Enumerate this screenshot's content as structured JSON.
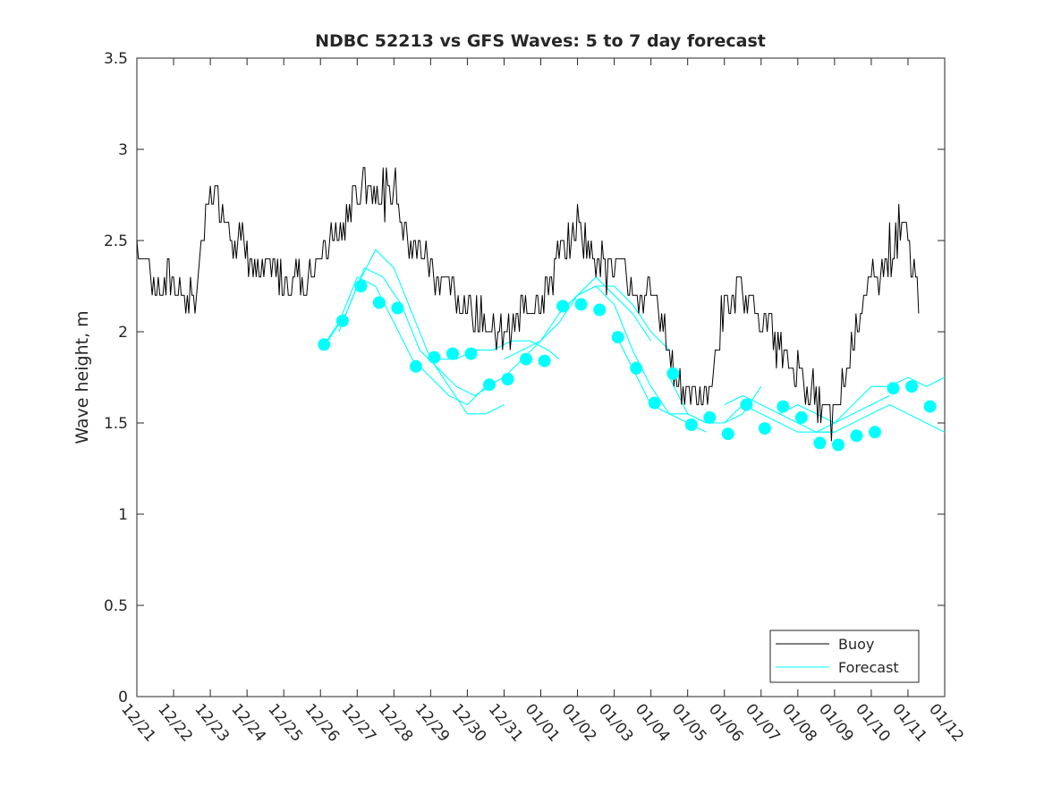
{
  "chart_data": {
    "type": "line",
    "title": "NDBC 52213 vs GFS Waves: 5 to 7 day forecast",
    "xlabel": "",
    "ylabel": "Wave height, m",
    "xlim": [
      0,
      22
    ],
    "ylim": [
      0,
      3.5
    ],
    "x_tick_labels": [
      "12/21",
      "12/22",
      "12/23",
      "12/24",
      "12/25",
      "12/26",
      "12/27",
      "12/28",
      "12/29",
      "12/30",
      "12/31",
      "01/01",
      "01/02",
      "01/03",
      "01/04",
      "01/05",
      "01/06",
      "01/07",
      "01/08",
      "01/09",
      "01/10",
      "01/11",
      "01/12"
    ],
    "y_ticks": [
      0,
      0.5,
      1,
      1.5,
      2,
      2.5,
      3,
      3.5
    ],
    "y_tick_labels": [
      "0",
      "0.5",
      "1",
      "1.5",
      "2",
      "2.5",
      "3",
      "3.5"
    ],
    "grid": false,
    "legend": {
      "position": "bottom-right",
      "entries": [
        "Buoy",
        "Forecast"
      ]
    },
    "colors": {
      "buoy": "#000000",
      "forecast": "#00ffff",
      "axis": "#262626"
    },
    "buoy": {
      "name": "Buoy",
      "days": [
        0,
        0.5,
        1,
        1.3,
        1.5,
        1.8,
        2,
        2.3,
        2.6,
        3,
        3.3,
        3.6,
        4,
        4.3,
        4.6,
        5,
        5.3,
        5.6,
        6,
        6.2,
        6.4,
        6.6,
        6.8,
        7,
        7.3,
        7.6,
        8,
        8.3,
        8.6,
        9,
        9.3,
        9.6,
        10,
        10.3,
        10.6,
        11,
        11.3,
        11.6,
        12,
        12.2,
        12.4,
        12.6,
        12.8,
        13,
        13.3,
        13.6,
        14,
        14.3,
        14.6,
        15,
        15.3,
        15.6,
        16,
        16.3,
        16.6,
        17,
        17.3,
        17.6,
        18,
        18.3,
        18.6,
        19,
        19.3,
        19.6,
        20,
        20.3,
        20.6,
        20.8,
        21,
        21.2,
        21.3
      ],
      "values": [
        2.5,
        2.25,
        2.3,
        2.2,
        2.1,
        2.5,
        2.75,
        2.7,
        2.55,
        2.45,
        2.3,
        2.35,
        2.3,
        2.3,
        2.25,
        2.4,
        2.5,
        2.55,
        2.75,
        2.85,
        2.8,
        2.75,
        2.7,
        2.8,
        2.55,
        2.45,
        2.35,
        2.25,
        2.2,
        2.15,
        2.1,
        2.0,
        1.95,
        2.05,
        2.15,
        2.2,
        2.3,
        2.45,
        2.6,
        2.5,
        2.45,
        2.4,
        2.35,
        2.4,
        2.3,
        2.2,
        2.2,
        2.05,
        1.8,
        1.65,
        1.65,
        1.7,
        2.1,
        2.2,
        2.15,
        2.1,
        2.0,
        1.85,
        1.8,
        1.7,
        1.6,
        1.5,
        1.75,
        2.05,
        2.25,
        2.35,
        2.45,
        2.55,
        2.5,
        2.3,
        2.2
      ],
      "noise_amplitude": 0.1
    },
    "forecast_lines": [
      {
        "x": [
          5,
          5.5,
          6,
          6.5,
          7,
          7.5,
          8,
          8.5,
          9,
          9.5
        ],
        "values": [
          1.9,
          2.05,
          2.3,
          2.25,
          2.05,
          1.85,
          1.75,
          1.65,
          1.6,
          1.7
        ]
      },
      {
        "x": [
          5.2,
          5.7,
          6.2,
          6.7,
          7.2,
          7.7,
          8.2,
          8.7,
          9.2,
          9.6
        ],
        "values": [
          1.95,
          2.1,
          2.35,
          2.3,
          2.15,
          1.9,
          1.8,
          1.7,
          1.65,
          1.7
        ]
      },
      {
        "x": [
          5.5,
          6,
          6.5,
          7,
          7.5,
          8,
          8.5,
          9,
          9.5,
          10
        ],
        "values": [
          2.0,
          2.25,
          2.45,
          2.35,
          2.1,
          1.85,
          1.7,
          1.55,
          1.55,
          1.6
        ]
      },
      {
        "x": [
          8.2,
          8.7,
          9.2,
          9.7,
          10.2,
          10.7,
          11.2,
          11.5
        ],
        "values": [
          1.85,
          1.85,
          1.9,
          1.9,
          1.95,
          1.95,
          1.9,
          1.85
        ]
      },
      {
        "x": [
          9.5,
          10,
          10.5,
          11,
          11.5,
          12,
          12.5,
          13,
          13.5,
          14
        ],
        "values": [
          1.7,
          1.75,
          1.85,
          1.95,
          2.1,
          2.2,
          2.3,
          2.2,
          2.1,
          1.95
        ]
      },
      {
        "x": [
          10,
          10.5,
          11,
          11.5,
          12,
          12.5,
          13,
          13.5,
          14,
          14.5
        ],
        "values": [
          1.85,
          1.9,
          1.95,
          2.05,
          2.2,
          2.25,
          2.25,
          2.15,
          2.0,
          1.9
        ]
      },
      {
        "x": [
          11.5,
          12,
          12.5,
          13,
          13.5,
          14,
          14.5,
          15,
          15.5
        ],
        "values": [
          2.1,
          2.2,
          2.25,
          2.15,
          1.9,
          1.7,
          1.55,
          1.5,
          1.45
        ]
      },
      {
        "x": [
          13,
          13.5,
          14,
          14.5,
          15,
          15.5,
          16,
          16.5,
          17
        ],
        "values": [
          2.0,
          1.8,
          1.6,
          1.55,
          1.55,
          1.5,
          1.5,
          1.55,
          1.7
        ]
      },
      {
        "x": [
          14.5,
          15,
          15.5,
          16,
          16.5,
          17,
          17.5,
          18,
          18.5,
          19
        ],
        "values": [
          1.75,
          1.55,
          1.5,
          1.5,
          1.6,
          1.55,
          1.5,
          1.45,
          1.45,
          1.45
        ]
      },
      {
        "x": [
          16,
          16.5,
          17,
          17.5,
          18,
          18.5,
          19,
          19.5,
          20,
          20.5
        ],
        "values": [
          1.6,
          1.65,
          1.6,
          1.55,
          1.6,
          1.55,
          1.5,
          1.55,
          1.6,
          1.65
        ]
      },
      {
        "x": [
          17.5,
          18,
          18.5,
          19,
          19.5,
          20,
          20.5,
          21,
          21.5,
          22
        ],
        "values": [
          1.55,
          1.5,
          1.45,
          1.45,
          1.5,
          1.55,
          1.6,
          1.55,
          1.5,
          1.45
        ]
      },
      {
        "x": [
          18.5,
          19,
          19.5,
          20,
          20.5,
          21,
          21.5,
          22
        ],
        "values": [
          1.45,
          1.5,
          1.6,
          1.7,
          1.7,
          1.75,
          1.7,
          1.75
        ]
      }
    ],
    "forecast_markers": {
      "x": [
        5.1,
        5.6,
        6.1,
        6.6,
        7.1,
        7.6,
        8.1,
        8.6,
        9.1,
        9.6,
        10.1,
        10.6,
        11.1,
        11.6,
        12.1,
        12.6,
        13.1,
        13.6,
        14.1,
        14.6,
        15.1,
        15.6,
        16.1,
        16.6,
        17.1,
        17.6,
        18.1,
        18.6,
        19.1,
        19.6,
        20.1,
        20.6,
        21.1,
        21.6
      ],
      "values": [
        1.93,
        2.06,
        2.25,
        2.16,
        2.13,
        1.81,
        1.86,
        1.88,
        1.88,
        1.71,
        1.74,
        1.85,
        1.84,
        2.14,
        2.15,
        2.12,
        1.97,
        1.8,
        1.61,
        1.77,
        1.49,
        1.53,
        1.44,
        1.6,
        1.47,
        1.59,
        1.53,
        1.39,
        1.38,
        1.43,
        1.45,
        1.69,
        1.7,
        1.59
      ]
    }
  }
}
